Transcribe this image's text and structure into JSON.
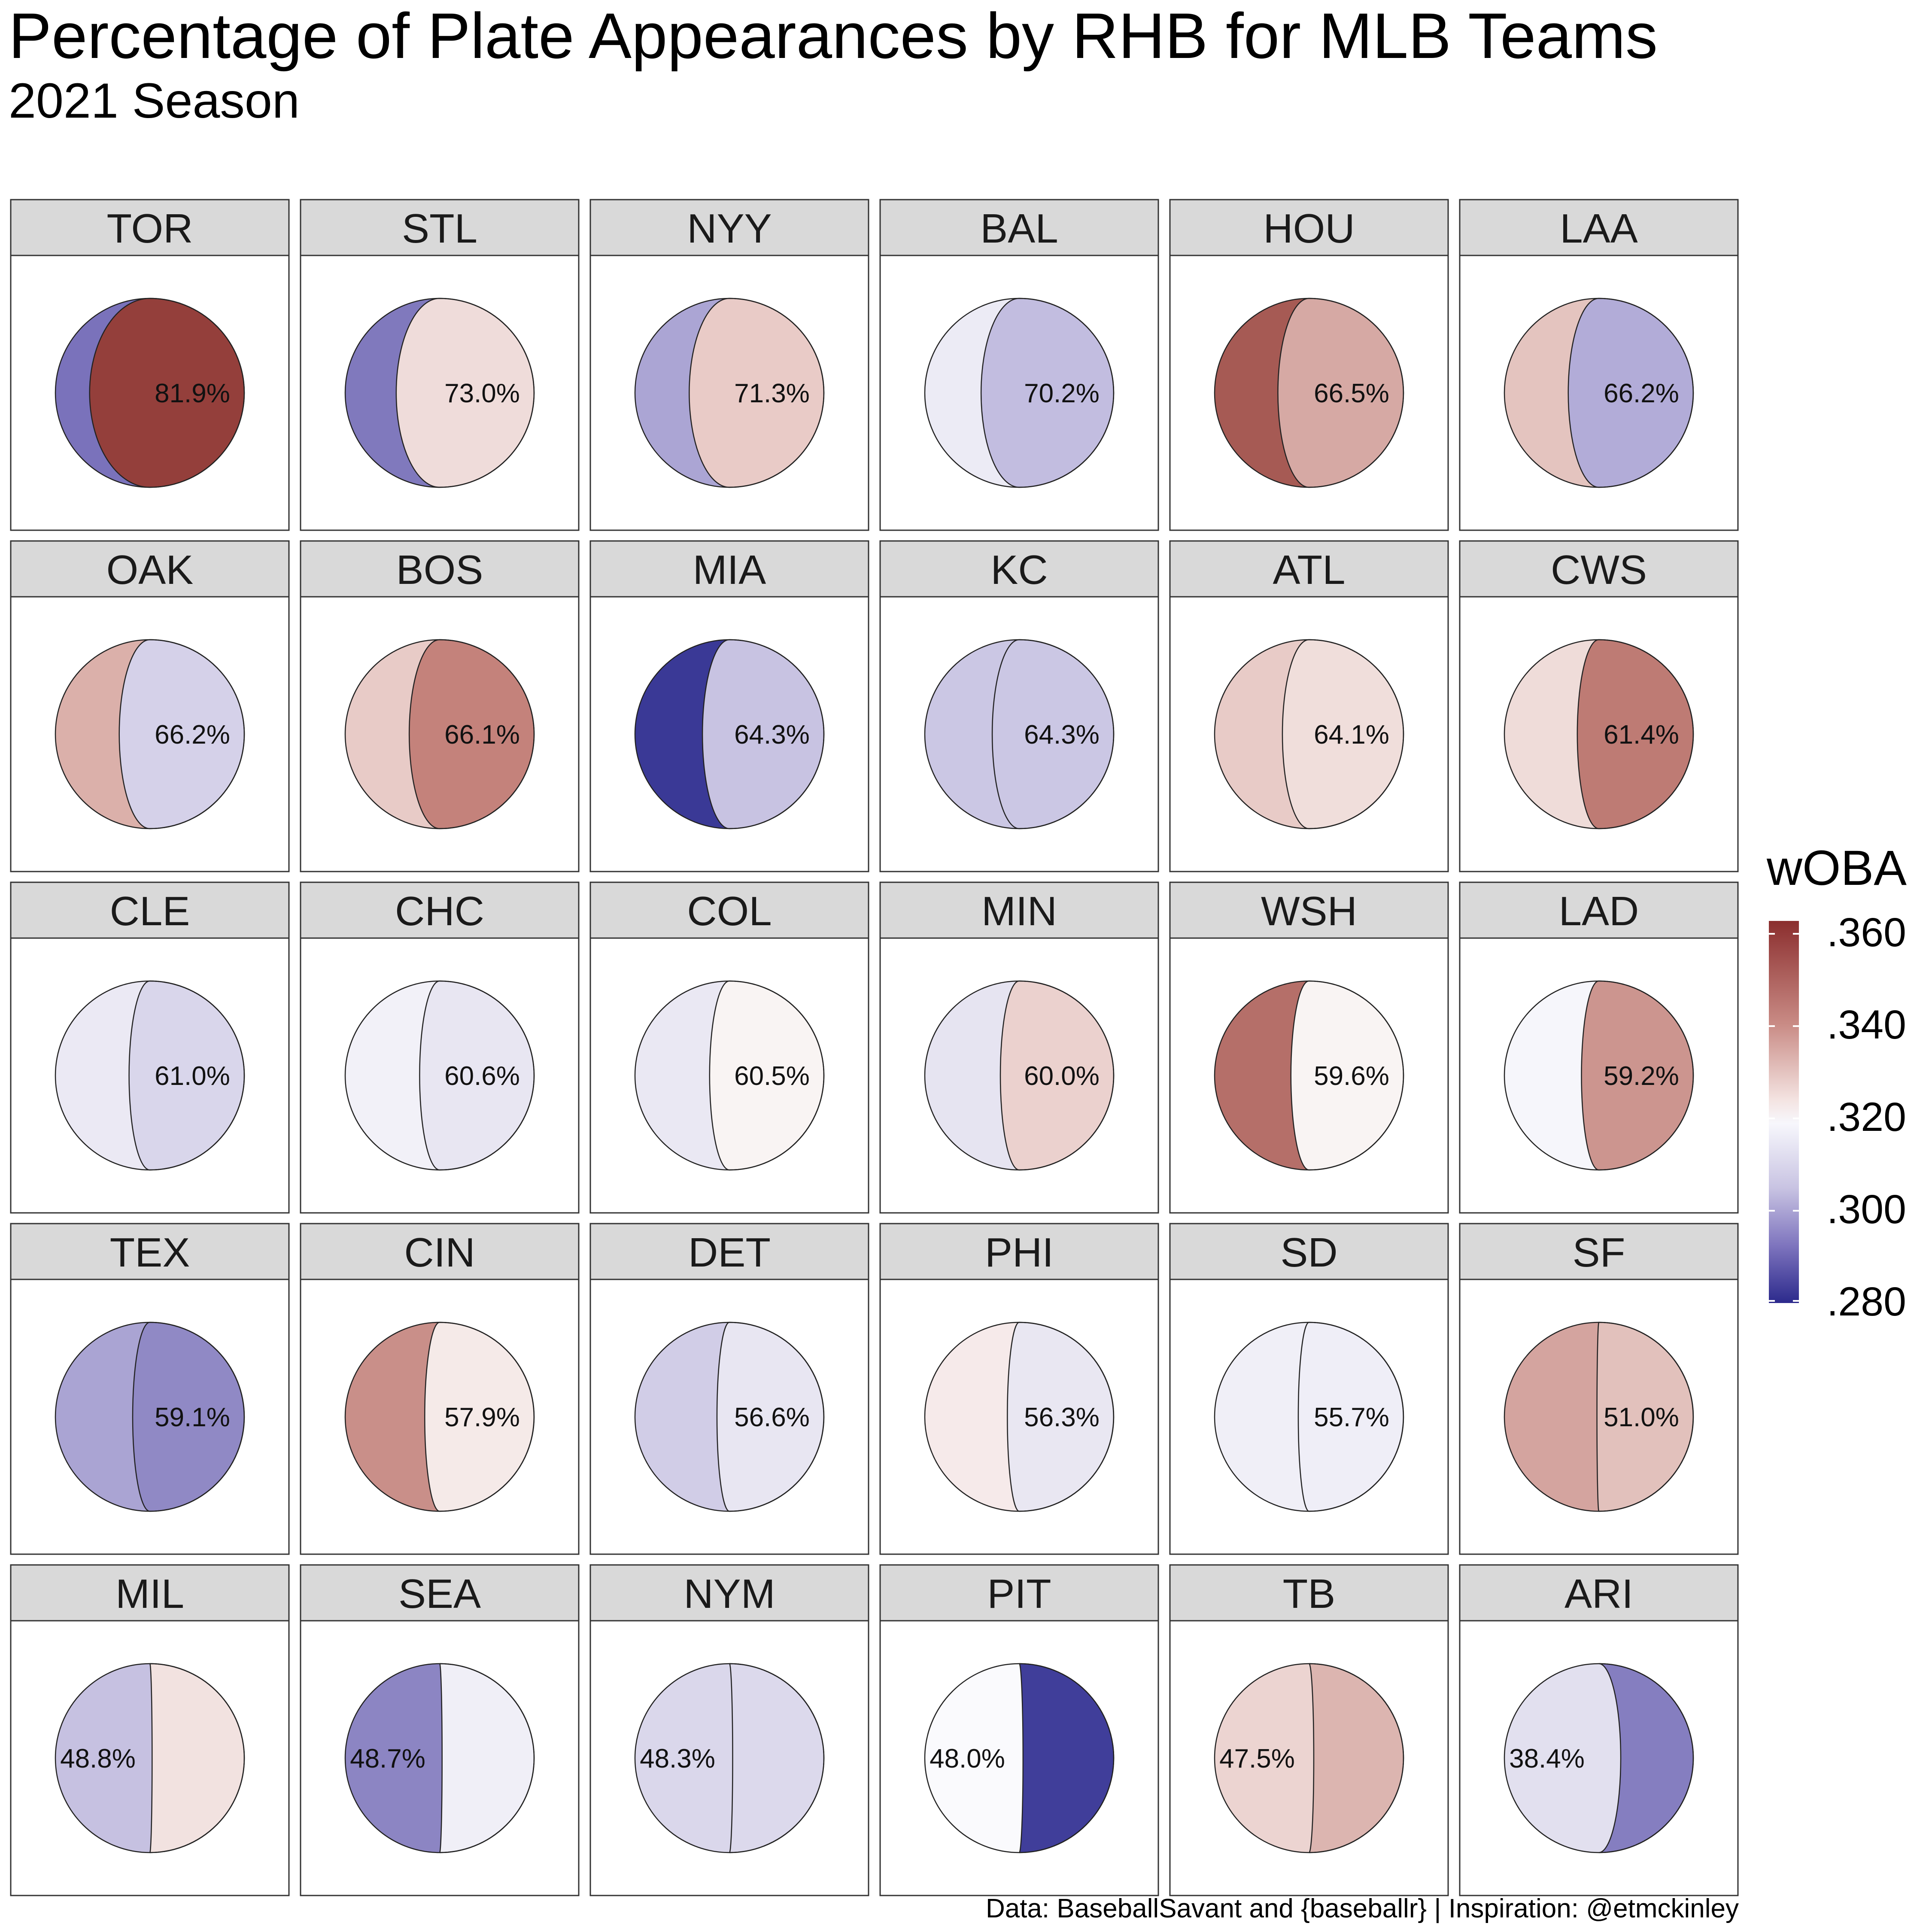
{
  "title": "Percentage of Plate Appearances by RHB for MLB Teams",
  "subtitle": "2021 Season",
  "caption": "Data: BaseballSavant and {baseballr} | Inspiration: @etmckinley",
  "legend": {
    "title": "wOBA",
    "labels": [
      ".360",
      ".340",
      ".320",
      ".300",
      ".280"
    ],
    "high_color": "#8b2e2e",
    "mid_color": "#f7f7fc",
    "low_color": "#2c2a8c"
  },
  "chart_data": {
    "type": "faceted-split-circle",
    "title": "Percentage of Plate Appearances by RHB for MLB Teams",
    "subtitle": "2021 Season",
    "legend_title": "wOBA",
    "color_scale_range": [
      0.28,
      0.36
    ],
    "color_scale_ticks": [
      0.28,
      0.3,
      0.32,
      0.34,
      0.36
    ],
    "teams": [
      {
        "team": "TOR",
        "rhb_pct": 81.9,
        "label": "81.9%",
        "left_color": "#7a72bb",
        "right_color": "#943f3b"
      },
      {
        "team": "STL",
        "rhb_pct": 73.0,
        "label": "73.0%",
        "left_color": "#8079bd",
        "right_color": "#efdcda"
      },
      {
        "team": "NYY",
        "rhb_pct": 71.3,
        "label": "71.3%",
        "left_color": "#aba5d4",
        "right_color": "#e9cbc7"
      },
      {
        "team": "BAL",
        "rhb_pct": 70.2,
        "label": "70.2%",
        "left_color": "#ecebf5",
        "right_color": "#c2bde0"
      },
      {
        "team": "HOU",
        "rhb_pct": 66.5,
        "label": "66.5%",
        "left_color": "#a65a54",
        "right_color": "#d6a9a4"
      },
      {
        "team": "LAA",
        "rhb_pct": 66.2,
        "label": "66.2%",
        "left_color": "#e4c4bf",
        "right_color": "#b2acd8"
      },
      {
        "team": "OAK",
        "rhb_pct": 66.2,
        "label": "66.2%",
        "left_color": "#dbb0aa",
        "right_color": "#d5d1e9"
      },
      {
        "team": "BOS",
        "rhb_pct": 66.1,
        "label": "66.1%",
        "left_color": "#e8cbc7",
        "right_color": "#c4827b"
      },
      {
        "team": "MIA",
        "rhb_pct": 64.3,
        "label": "64.3%",
        "left_color": "#3a3996",
        "right_color": "#c8c3e2"
      },
      {
        "team": "KC",
        "rhb_pct": 64.3,
        "label": "64.3%",
        "left_color": "#cbc7e4",
        "right_color": "#cbc7e4"
      },
      {
        "team": "ATL",
        "rhb_pct": 64.1,
        "label": "64.1%",
        "left_color": "#e8cbc7",
        "right_color": "#f0dedb"
      },
      {
        "team": "CWS",
        "rhb_pct": 61.4,
        "label": "61.4%",
        "left_color": "#efdcd9",
        "right_color": "#be7b74"
      },
      {
        "team": "CLE",
        "rhb_pct": 61.0,
        "label": "61.0%",
        "left_color": "#ebe9f4",
        "right_color": "#d9d6eb"
      },
      {
        "team": "CHC",
        "rhb_pct": 60.6,
        "label": "60.6%",
        "left_color": "#f2f1f8",
        "right_color": "#e8e6f2"
      },
      {
        "team": "COL",
        "rhb_pct": 60.5,
        "label": "60.5%",
        "left_color": "#eae8f3",
        "right_color": "#f9f4f3"
      },
      {
        "team": "MIN",
        "rhb_pct": 60.0,
        "label": "60.0%",
        "left_color": "#e6e4f1",
        "right_color": "#ebd1ce"
      },
      {
        "team": "WSH",
        "rhb_pct": 59.6,
        "label": "59.6%",
        "left_color": "#b56f69",
        "right_color": "#f9f4f3"
      },
      {
        "team": "LAD",
        "rhb_pct": 59.2,
        "label": "59.2%",
        "left_color": "#f6f6fb",
        "right_color": "#cc958f"
      },
      {
        "team": "TEX",
        "rhb_pct": 59.1,
        "label": "59.1%",
        "left_color": "#aaa4d3",
        "right_color": "#9089c5"
      },
      {
        "team": "CIN",
        "rhb_pct": 57.9,
        "label": "57.9%",
        "left_color": "#c98f89",
        "right_color": "#f5eae8"
      },
      {
        "team": "DET",
        "rhb_pct": 56.6,
        "label": "56.6%",
        "left_color": "#d1cde7",
        "right_color": "#e8e6f2"
      },
      {
        "team": "PHI",
        "rhb_pct": 56.3,
        "label": "56.3%",
        "left_color": "#f6eaea",
        "right_color": "#e9e7f2"
      },
      {
        "team": "SD",
        "rhb_pct": 55.7,
        "label": "55.7%",
        "left_color": "#f0eff7",
        "right_color": "#efeef7"
      },
      {
        "team": "SF",
        "rhb_pct": 51.0,
        "label": "51.0%",
        "left_color": "#d4a49f",
        "right_color": "#e2c1bc"
      },
      {
        "team": "MIL",
        "rhb_pct": 48.8,
        "label": "48.8%",
        "left_color": "#c6c1e1",
        "right_color": "#f2e2e0"
      },
      {
        "team": "SEA",
        "rhb_pct": 48.7,
        "label": "48.7%",
        "left_color": "#8c85c3",
        "right_color": "#f0eff7"
      },
      {
        "team": "NYM",
        "rhb_pct": 48.3,
        "label": "48.3%",
        "left_color": "#dad7eb",
        "right_color": "#dcd9ec"
      },
      {
        "team": "PIT",
        "rhb_pct": 48.0,
        "label": "48.0%",
        "left_color": "#fafafd",
        "right_color": "#403e9a"
      },
      {
        "team": "TB",
        "rhb_pct": 47.5,
        "label": "47.5%",
        "left_color": "#ecd4d1",
        "right_color": "#dcb5b0"
      },
      {
        "team": "ARI",
        "rhb_pct": 38.4,
        "label": "38.4%",
        "left_color": "#e2e0ef",
        "right_color": "#857ec0"
      }
    ]
  }
}
